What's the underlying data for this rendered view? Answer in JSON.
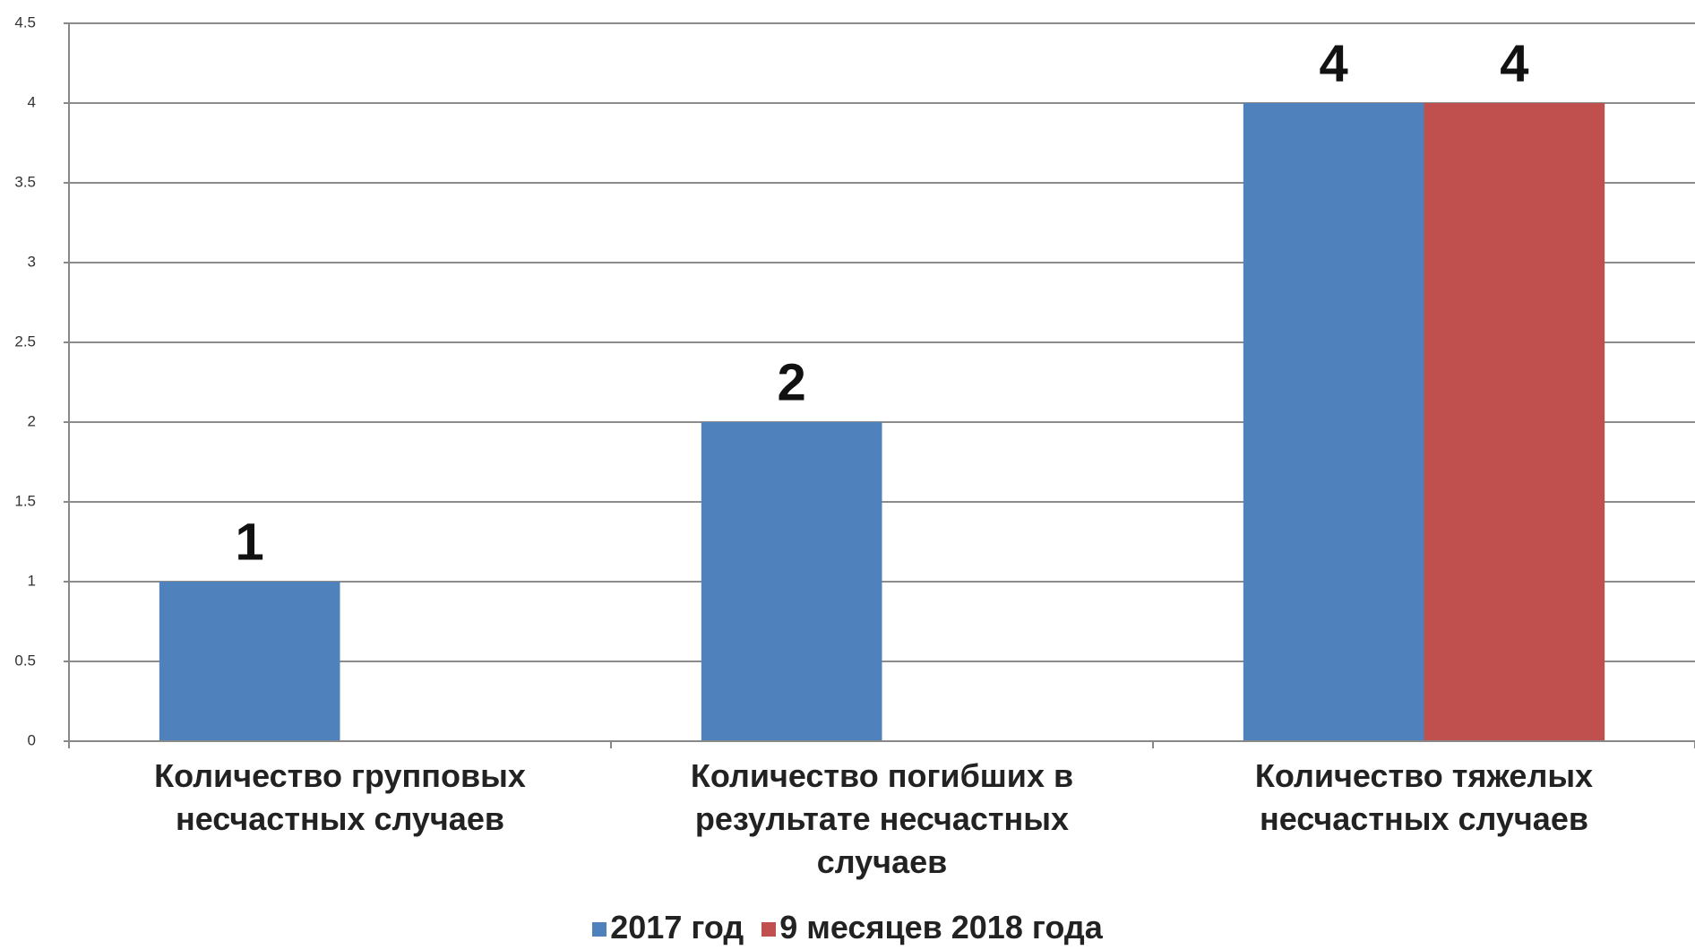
{
  "chart_data": {
    "type": "bar",
    "categories": [
      "Количество групповых несчастных случаев",
      "Количество погибших в результате несчастных случаев",
      "Количество тяжелых несчастных случаев"
    ],
    "series": [
      {
        "name": "2017 год",
        "color": "#4f81bd",
        "values": [
          1,
          2,
          4
        ]
      },
      {
        "name": "9 месяцев 2018 года",
        "color": "#c0504d",
        "values": [
          null,
          null,
          4
        ]
      }
    ],
    "ylim": [
      0,
      4.5
    ],
    "yticks": [
      0,
      0.5,
      1,
      1.5,
      2,
      2.5,
      3,
      3.5,
      4,
      4.5
    ],
    "grid": true,
    "legend": "bottom"
  }
}
